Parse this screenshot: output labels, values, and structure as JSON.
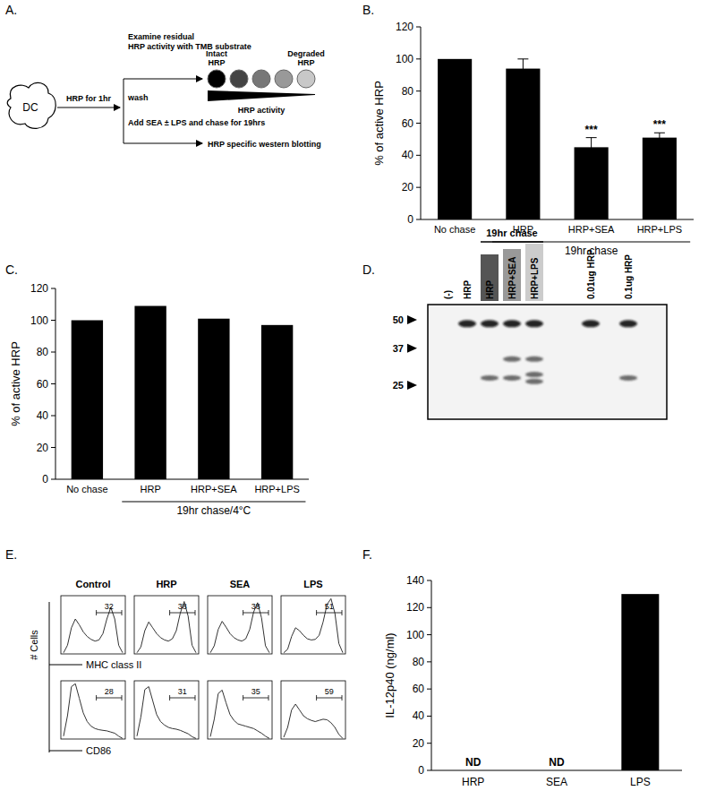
{
  "chart_data": [
    {
      "type": "bar",
      "title": "B.",
      "ylabel": "% of active HRP",
      "categories": [
        "No chase",
        "HRP",
        "HRP+SEA",
        "HRP+LPS"
      ],
      "values": [
        100,
        94,
        45,
        51
      ],
      "errors": [
        null,
        6,
        6,
        3
      ],
      "color": "#000000",
      "ylim": [
        0,
        120
      ],
      "yticks": [
        0,
        20,
        40,
        60,
        80,
        100,
        120
      ],
      "annotations": [
        {
          "x": 2,
          "text": "***"
        },
        {
          "x": 3,
          "text": "***"
        }
      ],
      "groups": [
        {
          "label": "19hr chase",
          "from": 1,
          "to": 3
        }
      ]
    },
    {
      "type": "bar",
      "title": "C.",
      "ylabel": "% of active HRP",
      "categories": [
        "No chase",
        "HRP",
        "HRP+SEA",
        "HRP+LPS"
      ],
      "values": [
        100,
        109,
        101,
        97
      ],
      "color": "#000000",
      "ylim": [
        0,
        120
      ],
      "yticks": [
        0,
        20,
        40,
        60,
        80,
        100,
        120
      ],
      "groups": [
        {
          "label": "19hr chase/4°C",
          "from": 1,
          "to": 3
        }
      ]
    },
    {
      "type": "line",
      "title": "E.",
      "ylabel": "# Cells",
      "tick_labels": false,
      "ylim": [
        0,
        100
      ],
      "columns": [
        "Control",
        "HRP",
        "SEA",
        "LPS"
      ],
      "rows": [
        {
          "label": "MHC class II",
          "gates": [
            32,
            38,
            38,
            51
          ],
          "series": [
            [
              2,
              15,
              45,
              60,
              50,
              38,
              30,
              25,
              22,
              24,
              35,
              60,
              80,
              60,
              15,
              2
            ],
            [
              2,
              12,
              40,
              55,
              45,
              35,
              28,
              24,
              22,
              26,
              40,
              70,
              90,
              65,
              15,
              2
            ],
            [
              2,
              14,
              42,
              56,
              46,
              35,
              28,
              24,
              22,
              26,
              42,
              72,
              88,
              62,
              14,
              2
            ],
            [
              2,
              8,
              30,
              45,
              40,
              32,
              26,
              24,
              25,
              32,
              55,
              85,
              95,
              70,
              18,
              2
            ]
          ]
        },
        {
          "label": "CD86",
          "gates": [
            28,
            31,
            35,
            59
          ],
          "series": [
            [
              5,
              40,
              90,
              95,
              70,
              45,
              30,
              22,
              18,
              16,
              15,
              14,
              12,
              10,
              5,
              1
            ],
            [
              5,
              38,
              85,
              90,
              66,
              42,
              30,
              24,
              20,
              18,
              17,
              15,
              12,
              9,
              4,
              1
            ],
            [
              4,
              34,
              78,
              84,
              62,
              42,
              32,
              26,
              24,
              22,
              20,
              18,
              14,
              10,
              5,
              1
            ],
            [
              3,
              20,
              50,
              60,
              50,
              40,
              35,
              32,
              30,
              32,
              34,
              33,
              28,
              20,
              8,
              1
            ]
          ]
        }
      ]
    },
    {
      "type": "bar",
      "title": "F.",
      "ylabel": "IL-12p40 (ng/ml)",
      "categories": [
        "HRP",
        "SEA",
        "LPS"
      ],
      "values": [
        null,
        null,
        130
      ],
      "color": "#000000",
      "ylim": [
        0,
        140
      ],
      "yticks": [
        0,
        20,
        40,
        60,
        80,
        100,
        120,
        140
      ],
      "annotations": [
        {
          "x": 0,
          "text": "ND"
        },
        {
          "x": 1,
          "text": "ND"
        }
      ]
    }
  ],
  "diagram": {
    "panel": "A.",
    "cell": "DC",
    "step1": "HRP for 1hr",
    "step2": "wash",
    "assay": [
      "Examine residual",
      "HRP activity with TMB substrate"
    ],
    "chase": "Add SEA ± LPS and chase for 19hrs",
    "blotting": "HRP specific western blotting",
    "intact": [
      "Intact",
      "HRP"
    ],
    "degraded": [
      "Degraded",
      "HRP"
    ],
    "gradient": "HRP activity"
  },
  "blot": {
    "panel": "D.",
    "markers": [
      50,
      37,
      25
    ],
    "groups": [
      {
        "label": "19hr chase",
        "from": 2,
        "to": 4
      }
    ],
    "lanes": [
      {
        "label": "(-)",
        "bands": []
      },
      {
        "label": "HRP",
        "bands": [
          48
        ]
      },
      {
        "label": "HRP",
        "bands": [
          48,
          27
        ]
      },
      {
        "label": "HRP+SEA",
        "bands": [
          48,
          33,
          27
        ]
      },
      {
        "label": "HRP+LPS",
        "bands": [
          48,
          33,
          28,
          26
        ]
      },
      {
        "label": "0.01ug HRP",
        "bands": [
          48
        ]
      },
      {
        "label": "0.1ug HRP",
        "bands": [
          48,
          27
        ]
      }
    ]
  }
}
